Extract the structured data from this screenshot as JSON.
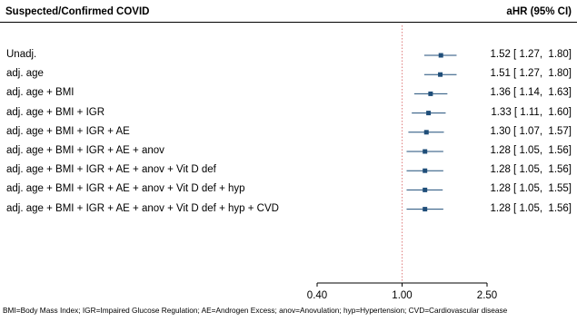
{
  "header": {
    "left": "Suspected/Confirmed COVID",
    "right": "aHR (95% CI)"
  },
  "footnote": "BMI=Body Mass Index; IGR=Impaired Glucose Regulation; AE=Androgen Excess; anov=Anovulation; hyp=Hypertension; CVD=Cardiovascular disease",
  "colors": {
    "point": "#1f4e79",
    "line": "#1f4e79",
    "reference": "#e08080"
  },
  "chart_data": {
    "type": "forest",
    "xscale": "log",
    "reference_value": 1.0,
    "xticks": [
      0.4,
      1.0,
      2.5
    ],
    "xtick_labels": [
      "0.40",
      "1.00",
      "2.50"
    ],
    "rows": [
      {
        "label": "Unadj.",
        "estimate": 1.52,
        "lower": 1.27,
        "upper": 1.8,
        "text": "1.52 [ 1.27,  1.80]"
      },
      {
        "label": "adj. age",
        "estimate": 1.51,
        "lower": 1.27,
        "upper": 1.8,
        "text": "1.51 [ 1.27,  1.80]"
      },
      {
        "label": "adj. age + BMI",
        "estimate": 1.36,
        "lower": 1.14,
        "upper": 1.63,
        "text": "1.36 [ 1.14,  1.63]"
      },
      {
        "label": "adj. age + BMI + IGR",
        "estimate": 1.33,
        "lower": 1.11,
        "upper": 1.6,
        "text": "1.33 [ 1.11,  1.60]"
      },
      {
        "label": "adj. age + BMI + IGR + AE",
        "estimate": 1.3,
        "lower": 1.07,
        "upper": 1.57,
        "text": "1.30 [ 1.07,  1.57]"
      },
      {
        "label": "adj. age + BMI + IGR + AE + anov",
        "estimate": 1.28,
        "lower": 1.05,
        "upper": 1.56,
        "text": "1.28 [ 1.05,  1.56]"
      },
      {
        "label": "adj. age + BMI + IGR + AE + anov + Vit D def",
        "estimate": 1.28,
        "lower": 1.05,
        "upper": 1.56,
        "text": "1.28 [ 1.05,  1.56]"
      },
      {
        "label": "adj. age + BMI + IGR + AE + anov + Vit D def + hyp",
        "estimate": 1.28,
        "lower": 1.05,
        "upper": 1.55,
        "text": "1.28 [ 1.05,  1.55]"
      },
      {
        "label": "adj. age + BMI + IGR + AE + anov + Vit D def + hyp + CVD",
        "estimate": 1.28,
        "lower": 1.05,
        "upper": 1.56,
        "text": "1.28 [ 1.05,  1.56]"
      }
    ]
  }
}
